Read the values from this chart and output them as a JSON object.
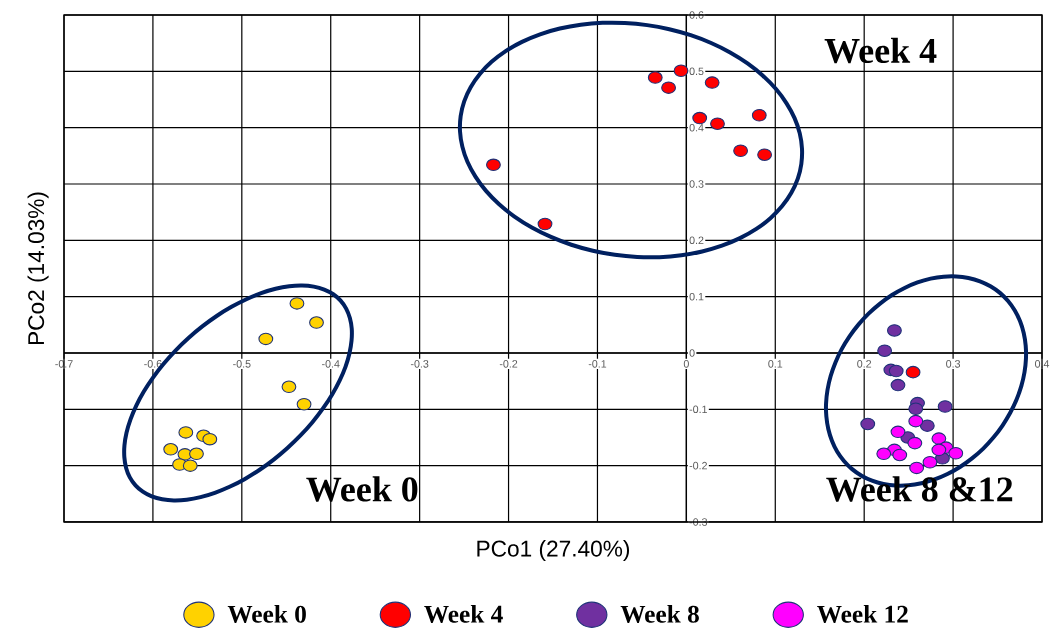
{
  "chart_data": {
    "type": "scatter",
    "xlabel": "PCo1 (27.40%)",
    "ylabel": "PCo2 (14.03%)",
    "xlim": [
      -0.7,
      0.4
    ],
    "ylim": [
      -0.3,
      0.6
    ],
    "xticks": [
      -0.7,
      -0.6,
      -0.5,
      -0.4,
      -0.3,
      -0.2,
      -0.1,
      0,
      0.1,
      0.2,
      0.3,
      0.4
    ],
    "yticks": [
      -0.3,
      -0.2,
      -0.1,
      0,
      0.1,
      0.2,
      0.3,
      0.4,
      0.5,
      0.6
    ],
    "grid": true,
    "legend": "bottom",
    "marker": "circle",
    "series": [
      {
        "name": "Week 0",
        "color": "#ffd200",
        "x": [
          -0.438,
          -0.416,
          -0.473,
          -0.447,
          -0.43,
          -0.563,
          -0.543,
          -0.536,
          -0.58,
          -0.564,
          -0.551,
          -0.57,
          -0.558
        ],
        "values": [
          0.088,
          0.054,
          0.025,
          -0.06,
          -0.091,
          -0.141,
          -0.147,
          -0.153,
          -0.171,
          -0.18,
          -0.179,
          -0.198,
          -0.2
        ]
      },
      {
        "name": "Week 4",
        "color": "#ff0000",
        "x": [
          -0.217,
          -0.159,
          -0.035,
          -0.02,
          -0.006,
          0.029,
          0.015,
          0.035,
          0.082,
          0.061,
          0.088,
          0.255
        ],
        "values": [
          0.334,
          0.229,
          0.489,
          0.471,
          0.501,
          0.48,
          0.417,
          0.407,
          0.422,
          0.359,
          0.352,
          -0.034
        ]
      },
      {
        "name": "Week 8",
        "color": "#7030a0",
        "x": [
          0.234,
          0.223,
          0.23,
          0.236,
          0.238,
          0.26,
          0.258,
          0.291,
          0.204,
          0.271,
          0.249,
          0.288
        ],
        "values": [
          0.04,
          0.004,
          -0.03,
          -0.032,
          -0.057,
          -0.089,
          -0.099,
          -0.095,
          -0.126,
          -0.129,
          -0.15,
          -0.187
        ]
      },
      {
        "name": "Week 12",
        "color": "#ff00ff",
        "x": [
          0.258,
          0.238,
          0.257,
          0.284,
          0.292,
          0.284,
          0.303,
          0.234,
          0.24,
          0.222,
          0.274,
          0.259
        ],
        "values": [
          -0.121,
          -0.14,
          -0.16,
          -0.152,
          -0.168,
          -0.172,
          -0.178,
          -0.172,
          -0.181,
          -0.179,
          -0.194,
          -0.204
        ]
      }
    ],
    "annotations": [
      "Week 4",
      "Week 0",
      "Week 8 &12"
    ]
  }
}
